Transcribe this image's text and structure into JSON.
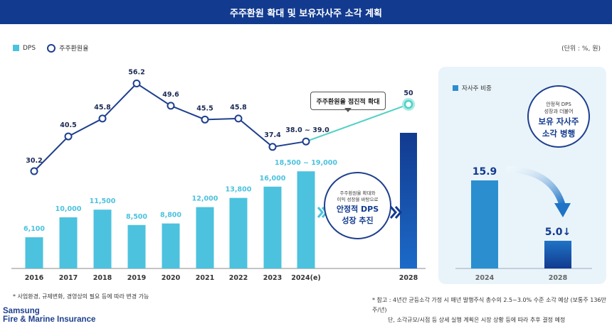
{
  "title": "주주환원 확대 및 보유자사주 소각 계획",
  "unit": "(단위 : %, 원)",
  "legend": {
    "dps": "DPS",
    "ratio": "주주환원율"
  },
  "colors": {
    "header": "#123a8f",
    "bar": "#4cc2de",
    "line": "#1e3f8e",
    "line_future": "#4fd0c4",
    "bar_2028": "#123a8f",
    "treasury": "#2b8fcf"
  },
  "chart_data": {
    "type": "bar+line",
    "categories": [
      "2016",
      "2017",
      "2018",
      "2019",
      "2020",
      "2021",
      "2022",
      "2023",
      "2024(e)",
      "2028"
    ],
    "series": [
      {
        "name": "DPS",
        "type": "bar",
        "values": [
          6100,
          10000,
          11500,
          8500,
          8800,
          12000,
          13800,
          16000,
          19000,
          null
        ],
        "labels": [
          "6,100",
          "10,000",
          "11,500",
          "8,500",
          "8,800",
          "12,000",
          "13,800",
          "16,000",
          "18,500 ~ 19,000",
          ""
        ]
      },
      {
        "name": "주주환원율",
        "type": "line",
        "values": [
          30.2,
          40.5,
          45.8,
          56.2,
          49.6,
          45.5,
          45.8,
          37.4,
          39.0,
          50
        ],
        "labels": [
          "30.2",
          "40.5",
          "45.8",
          "56.2",
          "49.6",
          "45.5",
          "45.8",
          "37.4",
          "38.0 ~ 39.0",
          "50"
        ]
      }
    ],
    "annotations": {
      "callout": "주주환원율 점진적 확대",
      "mid_small_1": "주주환원율 확대와",
      "mid_small_2": "이익 성장을 바탕으로",
      "mid_big_1": "안정적 DPS",
      "mid_big_2": "성장 추진"
    }
  },
  "treasury": {
    "legend": "자사주 비중",
    "categories": [
      "2024",
      "2028"
    ],
    "values": [
      15.9,
      5.0
    ],
    "labels": [
      "15.9",
      "5.0↓"
    ],
    "badge_small_1": "안정적 DPS",
    "badge_small_2": "성장과 더불어",
    "badge_big_1": "보유 자사주",
    "badge_big_2": "소각 병행"
  },
  "footnote": "* 사업환경, 규제변화, 경영상의 필요 등에 따라 변경 가능",
  "reference_1": "* 참고 : 4년간 균등소각 가정 시 매년 발행주식 총수의 2.5~3.0% 수준 소각 예상 (보통주 136만주/년)",
  "reference_2": "단, 소각규모/시점 등 상세 실행 계획은 시장 상황 등에 따라 추후 결정 예정",
  "brand_1": "Samsung",
  "brand_2": "Fire & Marine Insurance"
}
